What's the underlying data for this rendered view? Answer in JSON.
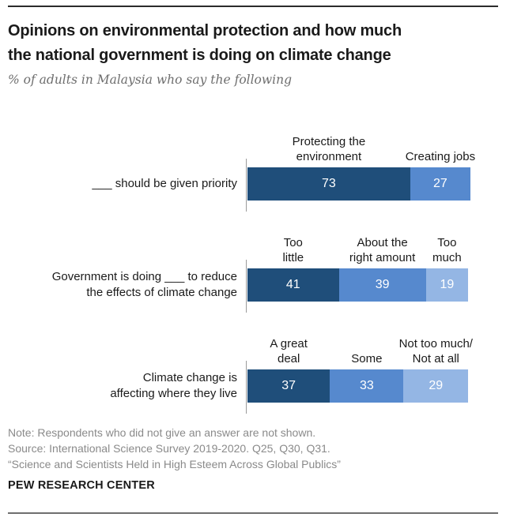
{
  "header": {
    "title_lines": [
      "Opinions on environmental protection and how much",
      "the national government is doing on climate change"
    ],
    "subtitle": "% of adults in Malaysia who say the following"
  },
  "chart_data": {
    "type": "bar",
    "orientation": "horizontal-stacked",
    "unit": "percent",
    "axis_max": 100,
    "colors": {
      "dark": "#1F4E7A",
      "medium": "#5689CE",
      "light": "#94B6E4"
    },
    "rows": [
      {
        "label_lines": [
          "___ should be given priority"
        ],
        "segments": [
          {
            "label_lines": [
              "Protecting the",
              "environment"
            ],
            "value": 73,
            "color": "dark"
          },
          {
            "label_lines": [
              "Creating jobs"
            ],
            "value": 27,
            "color": "medium"
          }
        ]
      },
      {
        "label_lines": [
          "Government is doing ___ to reduce",
          "the effects of climate change"
        ],
        "segments": [
          {
            "label_lines": [
              "Too",
              "little"
            ],
            "value": 41,
            "color": "dark"
          },
          {
            "label_lines": [
              "About the",
              "right amount"
            ],
            "value": 39,
            "color": "medium"
          },
          {
            "label_lines": [
              "Too",
              "much"
            ],
            "value": 19,
            "color": "light"
          }
        ]
      },
      {
        "label_lines": [
          "Climate change is",
          "affecting where they live"
        ],
        "segments": [
          {
            "label_lines": [
              "A great",
              "deal"
            ],
            "value": 37,
            "color": "dark"
          },
          {
            "label_lines": [
              "Some"
            ],
            "value": 33,
            "color": "medium"
          },
          {
            "label_lines": [
              "Not too much/",
              "Not at all"
            ],
            "value": 29,
            "color": "light"
          }
        ]
      }
    ]
  },
  "footer": {
    "notes": [
      "Note: Respondents who did not give an answer are not shown.",
      "Source: International Science Survey 2019-2020. Q25, Q30, Q31.",
      "“Science and Scientists Held in High Esteem Across Global Publics”"
    ],
    "brand": "PEW RESEARCH CENTER"
  }
}
